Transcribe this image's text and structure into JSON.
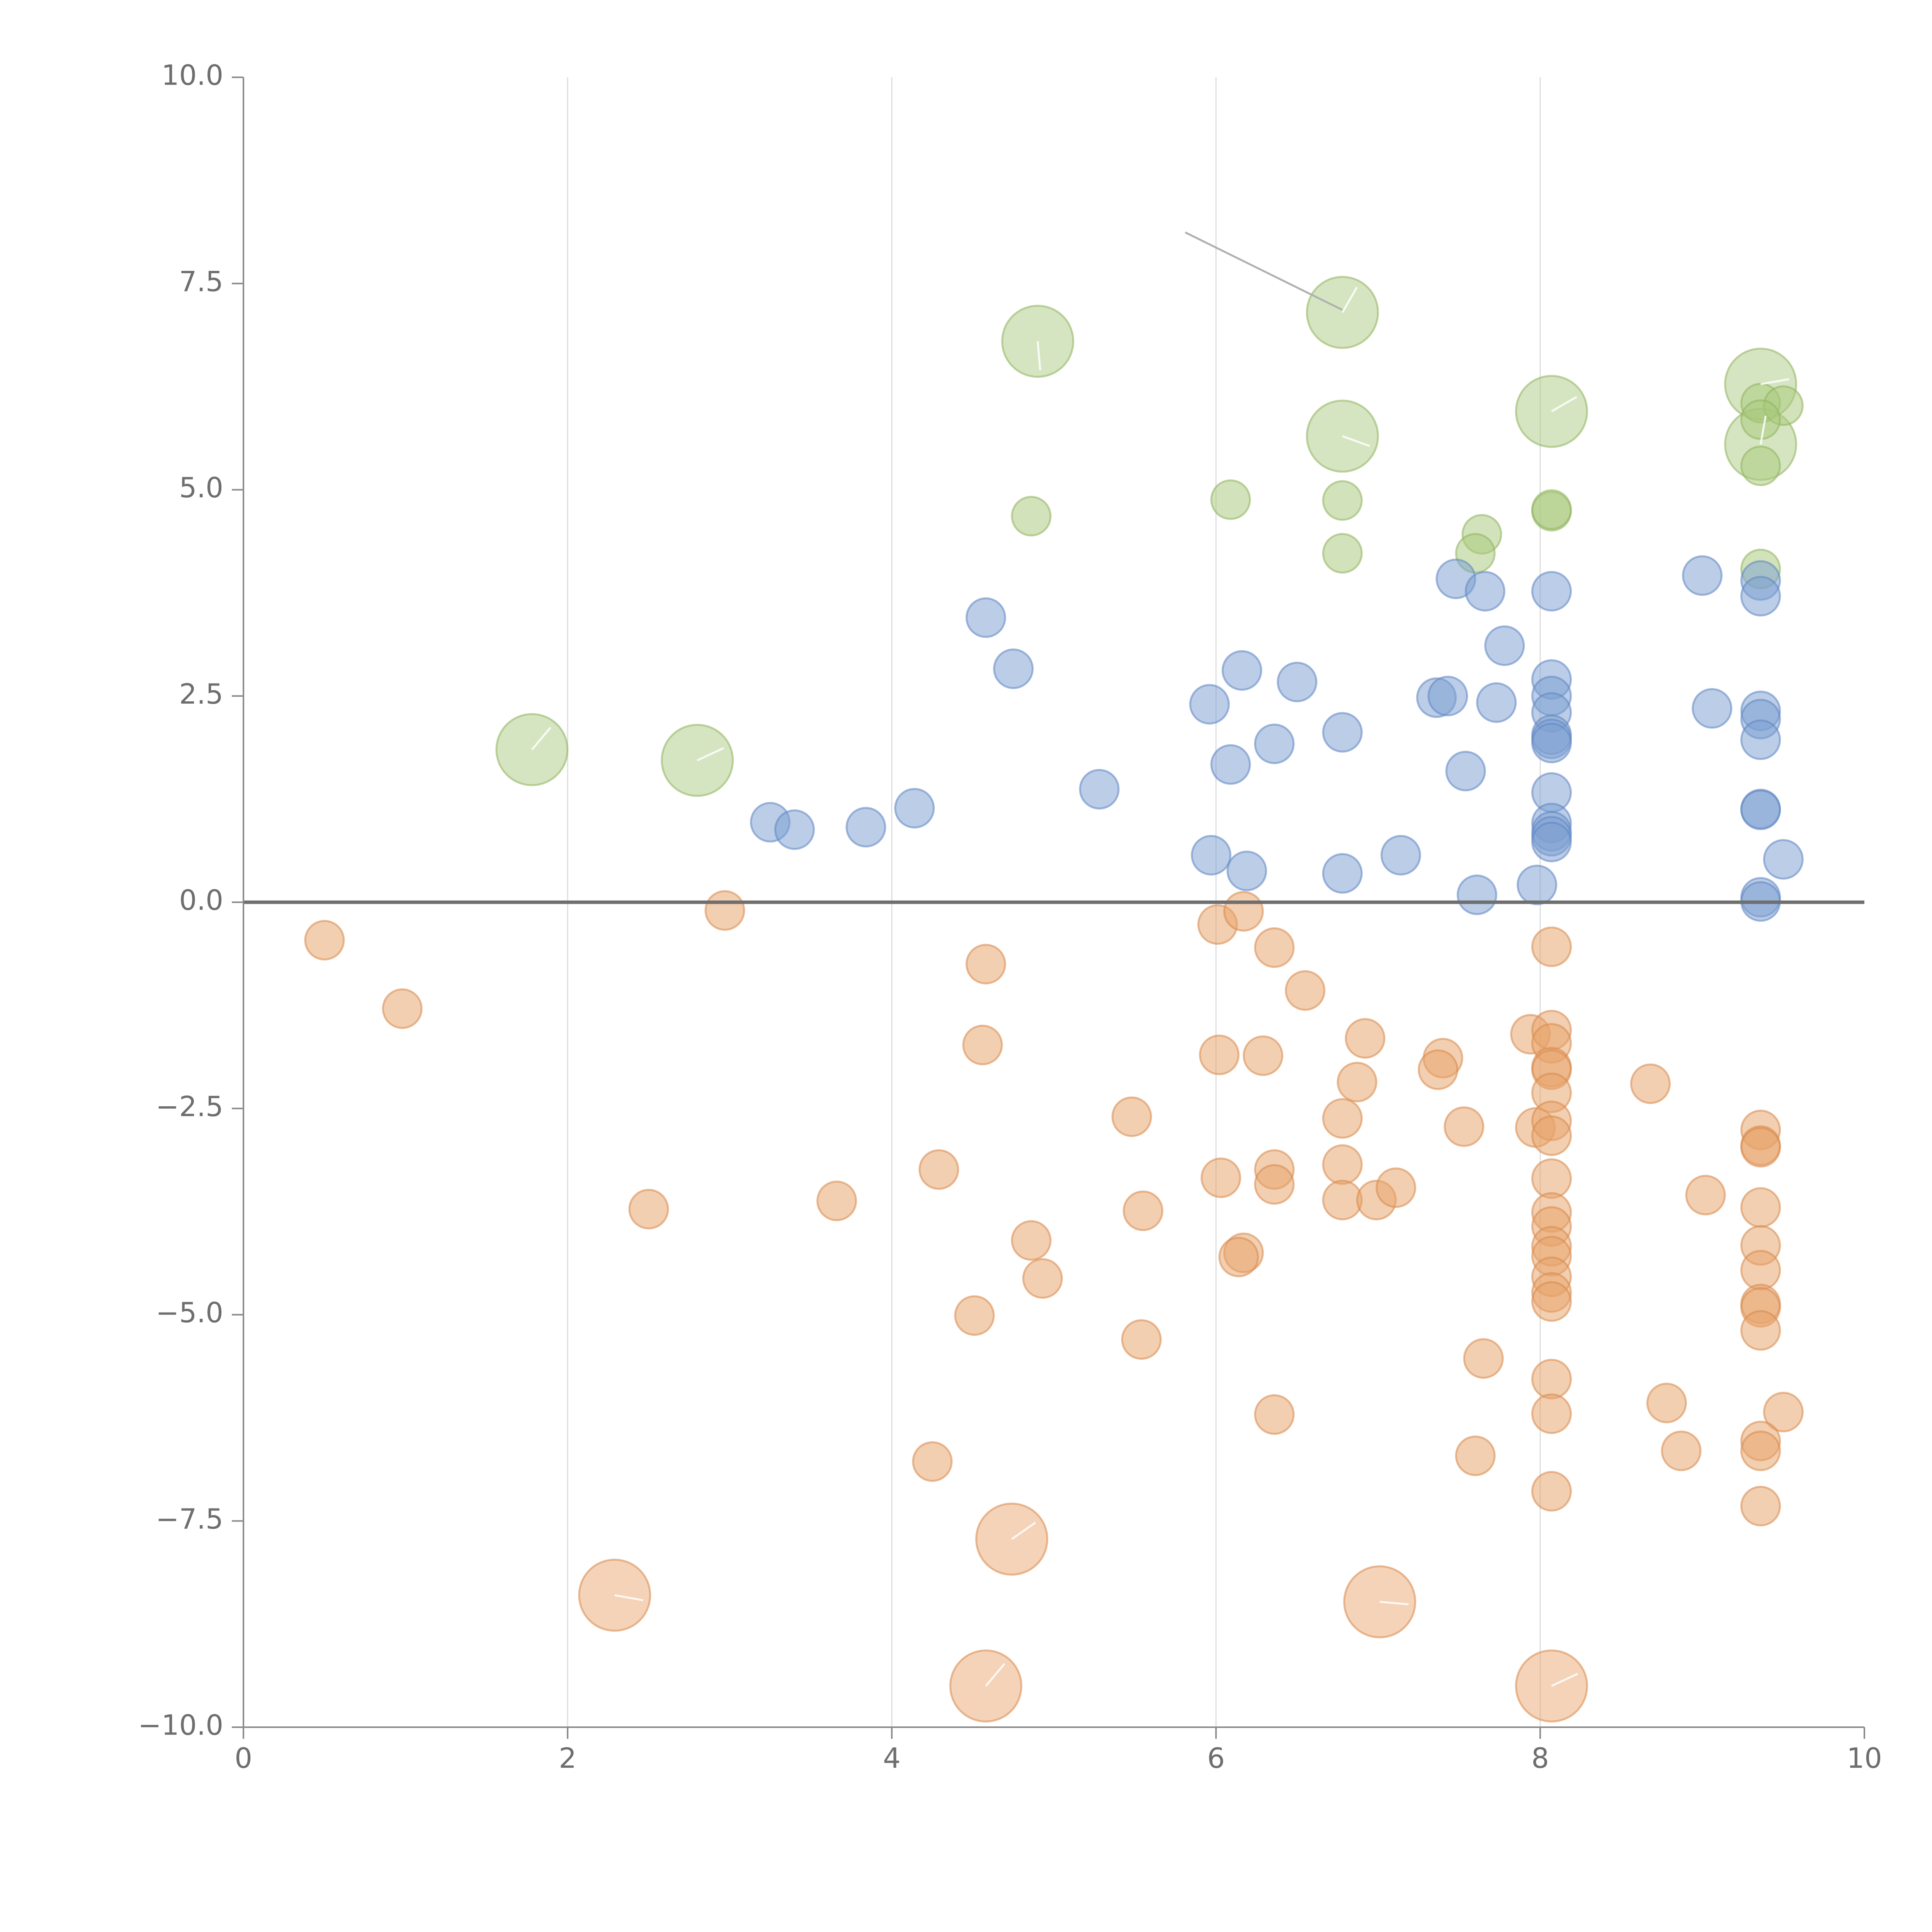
{
  "colors": {
    "green": "#a9c97d",
    "green_stroke": "#8fb35c",
    "blue": "#7d9fd1",
    "blue_stroke": "#5f85c2",
    "orange": "#e7a36a",
    "orange_stroke": "#d9894a"
  },
  "chart_data": {
    "type": "scatter",
    "title": "",
    "xlabel": "",
    "ylabel": "",
    "xlim": [
      0,
      10
    ],
    "ylim": [
      -10,
      10
    ],
    "x_ticks": [
      0,
      2,
      4,
      6,
      8,
      10
    ],
    "x_tick_labels": [
      "0",
      "2",
      "4",
      "6",
      "8",
      "10"
    ],
    "y_ticks": [
      10,
      7.5,
      5,
      2.5,
      0,
      -2.5,
      -5,
      -7.5,
      -10
    ],
    "y_tick_labels": [
      "10.0",
      "7.5",
      "5.0",
      "2.5",
      "0.0",
      "−2.5",
      "−5.0",
      "−7.5",
      "−10.0"
    ],
    "vertical_grid": [
      2,
      4,
      6,
      8
    ],
    "zero_line": 0,
    "series": [
      {
        "name": "green",
        "color_key": "green",
        "points": [
          [
            1.78,
            1.85,
            2
          ],
          [
            2.8,
            1.72,
            2
          ],
          [
            4.9,
            6.8,
            2
          ],
          [
            6.78,
            7.15,
            2
          ],
          [
            6.78,
            5.65,
            2
          ],
          [
            8.07,
            5.95,
            2
          ],
          [
            9.36,
            6.28,
            2
          ],
          [
            9.36,
            5.55,
            2
          ],
          [
            4.86,
            4.68,
            1
          ],
          [
            6.09,
            4.88,
            1
          ],
          [
            6.78,
            4.87,
            1
          ],
          [
            6.78,
            4.23,
            1
          ],
          [
            7.64,
            4.46,
            1
          ],
          [
            7.6,
            4.23,
            1
          ],
          [
            8.07,
            4.74,
            1
          ],
          [
            8.07,
            4.76,
            1
          ],
          [
            9.36,
            6.05,
            1
          ],
          [
            9.5,
            6.02,
            1
          ],
          [
            9.36,
            5.85,
            1
          ],
          [
            9.36,
            5.29,
            1
          ],
          [
            9.36,
            4.04,
            1
          ]
        ]
      },
      {
        "name": "blue",
        "color_key": "blue",
        "points": [
          [
            3.25,
            0.97,
            1
          ],
          [
            3.4,
            0.88,
            1
          ],
          [
            3.84,
            0.91,
            1
          ],
          [
            4.14,
            1.14,
            1
          ],
          [
            4.58,
            3.45,
            1
          ],
          [
            4.75,
            2.83,
            1
          ],
          [
            5.28,
            1.37,
            1
          ],
          [
            5.96,
            2.4,
            1
          ],
          [
            6.16,
            2.81,
            1
          ],
          [
            6.09,
            1.67,
            1
          ],
          [
            6.36,
            1.92,
            1
          ],
          [
            6.5,
            2.67,
            1
          ],
          [
            6.78,
            2.06,
            1
          ],
          [
            5.97,
            0.57,
            1
          ],
          [
            6.19,
            0.38,
            1
          ],
          [
            6.78,
            0.35,
            1
          ],
          [
            7.14,
            0.57,
            1
          ],
          [
            7.36,
            2.48,
            1
          ],
          [
            7.43,
            2.5,
            1
          ],
          [
            7.48,
            3.92,
            1
          ],
          [
            7.66,
            3.77,
            1
          ],
          [
            7.73,
            2.42,
            1
          ],
          [
            7.78,
            3.11,
            1
          ],
          [
            7.54,
            1.59,
            1
          ],
          [
            7.61,
            0.09,
            1
          ],
          [
            7.98,
            0.21,
            1
          ],
          [
            8.07,
            3.77,
            1
          ],
          [
            8.07,
            2.7,
            1
          ],
          [
            8.07,
            2.5,
            1
          ],
          [
            8.07,
            2.3,
            1
          ],
          [
            8.07,
            2.03,
            1
          ],
          [
            8.07,
            1.98,
            1
          ],
          [
            8.07,
            1.93,
            1
          ],
          [
            8.07,
            1.33,
            1
          ],
          [
            8.07,
            0.96,
            1
          ],
          [
            8.07,
            0.86,
            1
          ],
          [
            8.07,
            0.8,
            1
          ],
          [
            8.07,
            0.73,
            1
          ],
          [
            9.0,
            3.96,
            1
          ],
          [
            9.06,
            2.35,
            1
          ],
          [
            9.36,
            3.9,
            1
          ],
          [
            9.36,
            3.71,
            1
          ],
          [
            9.36,
            2.32,
            1
          ],
          [
            9.36,
            2.22,
            1
          ],
          [
            9.36,
            1.97,
            1
          ],
          [
            9.36,
            1.13,
            1
          ],
          [
            9.36,
            1.12,
            1
          ],
          [
            9.5,
            0.52,
            1
          ],
          [
            9.36,
            0.06,
            1
          ],
          [
            9.36,
            0.01,
            1
          ]
        ]
      },
      {
        "name": "orange",
        "color_key": "orange",
        "points": [
          [
            0.5,
            -0.46,
            1
          ],
          [
            0.98,
            -1.29,
            1
          ],
          [
            2.97,
            -0.1,
            1
          ],
          [
            2.5,
            -3.72,
            1
          ],
          [
            3.66,
            -3.62,
            1
          ],
          [
            4.29,
            -3.24,
            1
          ],
          [
            4.58,
            -0.75,
            1
          ],
          [
            4.56,
            -1.73,
            1
          ],
          [
            4.86,
            -4.1,
            1
          ],
          [
            4.93,
            -4.56,
            1
          ],
          [
            4.51,
            -5.01,
            1
          ],
          [
            4.25,
            -6.78,
            1
          ],
          [
            5.48,
            -2.6,
            1
          ],
          [
            5.55,
            -3.74,
            1
          ],
          [
            5.54,
            -5.3,
            1
          ],
          [
            6.01,
            -0.27,
            1
          ],
          [
            6.17,
            -0.11,
            1
          ],
          [
            6.36,
            -0.55,
            1
          ],
          [
            6.55,
            -1.07,
            1
          ],
          [
            6.02,
            -1.85,
            1
          ],
          [
            6.29,
            -1.86,
            1
          ],
          [
            6.03,
            -3.34,
            1
          ],
          [
            6.36,
            -3.24,
            1
          ],
          [
            6.36,
            -3.42,
            1
          ],
          [
            6.17,
            -4.25,
            1
          ],
          [
            6.14,
            -4.3,
            1
          ],
          [
            6.36,
            -6.21,
            1
          ],
          [
            6.92,
            -1.65,
            1
          ],
          [
            6.87,
            -2.18,
            1
          ],
          [
            6.78,
            -2.62,
            1
          ],
          [
            6.78,
            -3.18,
            1
          ],
          [
            6.78,
            -3.61,
            1
          ],
          [
            6.99,
            -3.61,
            1
          ],
          [
            7.11,
            -3.46,
            1
          ],
          [
            7.4,
            -1.89,
            1
          ],
          [
            7.37,
            -2.03,
            1
          ],
          [
            7.53,
            -2.72,
            1
          ],
          [
            7.65,
            -5.53,
            1
          ],
          [
            7.6,
            -6.71,
            1
          ],
          [
            7.94,
            -1.6,
            1
          ],
          [
            7.97,
            -2.73,
            1
          ],
          [
            8.07,
            -0.54,
            1
          ],
          [
            8.07,
            -1.55,
            1
          ],
          [
            8.07,
            -1.71,
            1
          ],
          [
            8.07,
            -2.0,
            1
          ],
          [
            8.07,
            -2.03,
            1
          ],
          [
            8.07,
            -2.31,
            1
          ],
          [
            8.07,
            -2.65,
            1
          ],
          [
            8.07,
            -2.83,
            1
          ],
          [
            8.07,
            -3.35,
            1
          ],
          [
            8.07,
            -3.76,
            1
          ],
          [
            8.07,
            -3.93,
            1
          ],
          [
            8.07,
            -4.17,
            1
          ],
          [
            8.07,
            -4.29,
            1
          ],
          [
            8.07,
            -4.54,
            1
          ],
          [
            8.07,
            -4.73,
            1
          ],
          [
            8.07,
            -4.84,
            1
          ],
          [
            8.07,
            -5.78,
            1
          ],
          [
            8.07,
            -6.2,
            1
          ],
          [
            8.07,
            -7.14,
            1
          ],
          [
            8.68,
            -2.2,
            1
          ],
          [
            8.78,
            -6.07,
            1
          ],
          [
            8.87,
            -6.65,
            1
          ],
          [
            9.02,
            -3.55,
            1
          ],
          [
            9.36,
            -2.76,
            1
          ],
          [
            9.36,
            -2.95,
            1
          ],
          [
            9.36,
            -2.97,
            1
          ],
          [
            9.36,
            -3.7,
            1
          ],
          [
            9.36,
            -4.16,
            1
          ],
          [
            9.36,
            -4.46,
            1
          ],
          [
            9.36,
            -4.87,
            1
          ],
          [
            9.36,
            -4.91,
            1
          ],
          [
            9.36,
            -5.19,
            1
          ],
          [
            9.5,
            -6.18,
            1
          ],
          [
            9.36,
            -6.53,
            1
          ],
          [
            9.36,
            -6.65,
            1
          ],
          [
            9.36,
            -7.32,
            1
          ],
          [
            2.29,
            -8.4,
            2
          ],
          [
            4.74,
            -7.72,
            2
          ],
          [
            7.01,
            -8.48,
            2
          ],
          [
            4.58,
            -9.5,
            2
          ],
          [
            8.07,
            -9.5,
            2
          ]
        ]
      }
    ]
  }
}
